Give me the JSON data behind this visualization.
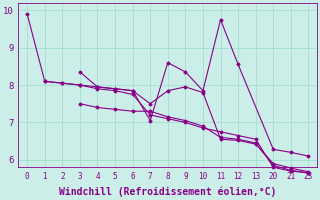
{
  "background_color": "#cceee8",
  "line_color": "#880088",
  "marker": "D",
  "markersize": 1.5,
  "linewidth": 0.8,
  "xlabel": "Windchill (Refroidissement éolien,°C)",
  "xlabel_fontsize": 7,
  "xlim": [
    -0.5,
    16.5
  ],
  "ylim": [
    5.8,
    10.2
  ],
  "xtick_positions": [
    0,
    1,
    2,
    3,
    4,
    5,
    6,
    7,
    8,
    9,
    10,
    11,
    12,
    13,
    14,
    15,
    16
  ],
  "xtick_labels": [
    "0",
    "1",
    "2",
    "3",
    "4",
    "5",
    "6",
    "7",
    "8",
    "9",
    "10",
    "11",
    "12",
    "13",
    "20",
    "21",
    "23"
  ],
  "yticks": [
    6,
    7,
    8,
    9,
    10
  ],
  "grid_color": "#99ddcc",
  "series": [
    {
      "xi": [
        0,
        1,
        2,
        3,
        4,
        5,
        6,
        7,
        8,
        9,
        10,
        11,
        12,
        13,
        14,
        15,
        16
      ],
      "y": [
        9.9,
        8.1,
        8.05,
        8.0,
        7.9,
        7.85,
        7.75,
        7.2,
        7.1,
        7.0,
        6.85,
        6.75,
        6.65,
        6.55,
        5.8,
        5.7,
        5.65
      ]
    },
    {
      "xi": [
        3,
        4,
        5,
        6,
        7,
        8,
        9,
        10,
        11,
        12,
        13,
        14,
        15,
        16
      ],
      "y": [
        7.5,
        7.4,
        7.35,
        7.3,
        7.3,
        7.15,
        7.05,
        6.9,
        6.6,
        6.55,
        6.45,
        5.85,
        5.72,
        5.65
      ]
    },
    {
      "xi": [
        3,
        4,
        5,
        6,
        7,
        8,
        9,
        10,
        11,
        12,
        14,
        15,
        16
      ],
      "y": [
        8.35,
        7.95,
        7.9,
        7.85,
        7.05,
        8.6,
        8.35,
        7.85,
        9.75,
        8.55,
        6.28,
        6.2,
        6.1
      ]
    },
    {
      "xi": [
        1,
        2,
        3,
        4,
        5,
        6,
        7,
        8,
        9,
        10,
        11,
        12,
        13,
        14,
        15,
        16
      ],
      "y": [
        8.1,
        8.05,
        8.0,
        7.95,
        7.9,
        7.85,
        7.5,
        7.85,
        7.95,
        7.8,
        6.55,
        6.52,
        6.42,
        5.9,
        5.78,
        5.68
      ]
    }
  ]
}
